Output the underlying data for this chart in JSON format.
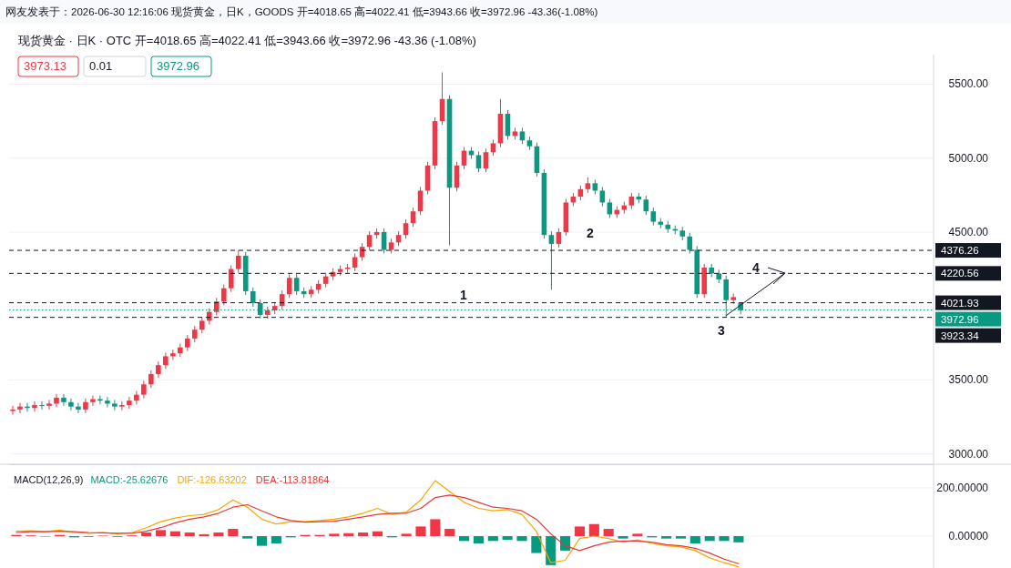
{
  "chart_data": [
    {
      "type": "candlestick",
      "title": "网友发表于：2026-06-30 12:16:06 现货黄金，日K，GOODS 开=4018.65 高=4022.41 低=3943.66 收=3972.96 -43.36(-1.08%)",
      "subtitle": "现货黄金 · 日K · OTC   开=4018.65 高=4022.41 低=3943.66 收=3972.96 -43.36 (-1.08%)",
      "annotations": [
        "3973.13",
        "0.01",
        "3972.96",
        "1",
        "2",
        "3",
        "4"
      ],
      "categories": [
        null,
        null,
        null,
        null,
        null,
        null,
        null,
        null,
        null,
        null,
        null,
        null,
        null,
        null,
        null,
        null,
        null,
        null,
        null,
        null,
        null,
        null,
        null,
        null,
        null,
        null,
        null,
        null,
        null,
        null,
        null,
        null,
        null,
        null,
        null,
        null,
        null,
        null,
        null,
        null,
        null,
        null,
        null,
        null,
        null,
        null,
        null,
        null,
        null,
        null,
        null,
        null,
        null,
        null,
        null,
        null,
        null,
        null,
        null,
        null,
        null,
        null,
        null,
        null,
        null,
        null,
        null,
        null,
        null,
        null,
        null,
        null,
        null,
        null,
        null,
        null,
        null,
        null,
        null,
        null,
        null,
        null,
        null,
        null,
        null,
        null,
        null,
        null,
        null,
        null,
        null,
        null,
        null,
        null,
        null,
        null,
        null,
        null,
        null,
        null,
        null,
        null,
        null,
        null,
        null,
        null,
        null,
        null,
        null,
        null,
        null,
        null,
        null,
        null,
        null,
        null,
        null,
        null,
        null,
        null,
        null,
        null,
        null,
        null,
        null,
        null,
        null
      ],
      "ohlc": [
        [
          3290,
          3325,
          3265,
          3300
        ],
        [
          3300,
          3345,
          3275,
          3320
        ],
        [
          3320,
          3345,
          3285,
          3310
        ],
        [
          3310,
          3355,
          3285,
          3330
        ],
        [
          3330,
          3355,
          3300,
          3325
        ],
        [
          3325,
          3365,
          3300,
          3340
        ],
        [
          3340,
          3405,
          3315,
          3380
        ],
        [
          3380,
          3405,
          3325,
          3350
        ],
        [
          3350,
          3375,
          3295,
          3320
        ],
        [
          3320,
          3345,
          3275,
          3300
        ],
        [
          3300,
          3375,
          3275,
          3350
        ],
        [
          3350,
          3395,
          3325,
          3370
        ],
        [
          3370,
          3395,
          3335,
          3360
        ],
        [
          3360,
          3385,
          3315,
          3340
        ],
        [
          3340,
          3365,
          3295,
          3320
        ],
        [
          3320,
          3355,
          3295,
          3330
        ],
        [
          3330,
          3385,
          3305,
          3360
        ],
        [
          3360,
          3425,
          3335,
          3400
        ],
        [
          3400,
          3495,
          3375,
          3470
        ],
        [
          3470,
          3565,
          3445,
          3540
        ],
        [
          3540,
          3625,
          3515,
          3600
        ],
        [
          3600,
          3685,
          3575,
          3660
        ],
        [
          3660,
          3705,
          3635,
          3680
        ],
        [
          3680,
          3745,
          3655,
          3720
        ],
        [
          3720,
          3805,
          3695,
          3780
        ],
        [
          3780,
          3865,
          3755,
          3840
        ],
        [
          3840,
          3925,
          3815,
          3900
        ],
        [
          3900,
          3985,
          3875,
          3960
        ],
        [
          3960,
          4055,
          3935,
          4030
        ],
        [
          4030,
          4145,
          4005,
          4120
        ],
        [
          4120,
          4275,
          4095,
          4250
        ],
        [
          4250,
          4376.26,
          4225,
          4340
        ],
        [
          4340,
          4365,
          4075,
          4100
        ],
        [
          4100,
          4125,
          3995,
          4020
        ],
        [
          4020,
          4045,
          3915,
          3940
        ],
        [
          3940,
          3995,
          3915,
          3970
        ],
        [
          3970,
          4025,
          3945,
          4000
        ],
        [
          4000,
          4105,
          3975,
          4080
        ],
        [
          4080,
          4215,
          4055,
          4190
        ],
        [
          4190,
          4215,
          4075,
          4100
        ],
        [
          4100,
          4125,
          4055,
          4080
        ],
        [
          4080,
          4135,
          4055,
          4110
        ],
        [
          4110,
          4175,
          4085,
          4150
        ],
        [
          4150,
          4225,
          4125,
          4200
        ],
        [
          4200,
          4255,
          4175,
          4230
        ],
        [
          4230,
          4275,
          4205,
          4250
        ],
        [
          4250,
          4285,
          4225,
          4260
        ],
        [
          4260,
          4355,
          4235,
          4330
        ],
        [
          4330,
          4425,
          4305,
          4400
        ],
        [
          4400,
          4505,
          4375,
          4480
        ],
        [
          4480,
          4525,
          4455,
          4500
        ],
        [
          4500,
          4525,
          4355,
          4380
        ],
        [
          4380,
          4455,
          4355,
          4430
        ],
        [
          4430,
          4505,
          4405,
          4480
        ],
        [
          4480,
          4585,
          4455,
          4560
        ],
        [
          4560,
          4665,
          4535,
          4640
        ],
        [
          4640,
          4805,
          4615,
          4780
        ],
        [
          4780,
          4975,
          4755,
          4950
        ],
        [
          4950,
          5275,
          4925,
          5250
        ],
        [
          5250,
          5580,
          5225,
          5400
        ],
        [
          5400,
          5425,
          4410,
          4800
        ],
        [
          4800,
          4975,
          4775,
          4950
        ],
        [
          4950,
          5075,
          4925,
          5050
        ],
        [
          5050,
          5075,
          4995,
          5020
        ],
        [
          5020,
          5045,
          4905,
          4930
        ],
        [
          4930,
          5065,
          4905,
          5040
        ],
        [
          5040,
          5125,
          5015,
          5100
        ],
        [
          5100,
          5400,
          5075,
          5300
        ],
        [
          5300,
          5325,
          5125,
          5150
        ],
        [
          5150,
          5205,
          5125,
          5180
        ],
        [
          5180,
          5205,
          5095,
          5120
        ],
        [
          5120,
          5145,
          5055,
          5080
        ],
        [
          5080,
          5105,
          4875,
          4900
        ],
        [
          4900,
          4925,
          4455,
          4480
        ],
        [
          4480,
          4505,
          4110,
          4420
        ],
        [
          4420,
          4525,
          4395,
          4500
        ],
        [
          4500,
          4725,
          4475,
          4700
        ],
        [
          4700,
          4765,
          4675,
          4740
        ],
        [
          4740,
          4815,
          4715,
          4790
        ],
        [
          4790,
          4870,
          4765,
          4830
        ],
        [
          4830,
          4855,
          4755,
          4780
        ],
        [
          4780,
          4805,
          4675,
          4700
        ],
        [
          4700,
          4725,
          4595,
          4620
        ],
        [
          4620,
          4675,
          4595,
          4650
        ],
        [
          4650,
          4705,
          4625,
          4680
        ],
        [
          4680,
          4765,
          4655,
          4740
        ],
        [
          4740,
          4765,
          4695,
          4720
        ],
        [
          4720,
          4745,
          4615,
          4640
        ],
        [
          4640,
          4665,
          4545,
          4570
        ],
        [
          4570,
          4595,
          4525,
          4550
        ],
        [
          4550,
          4575,
          4495,
          4520
        ],
        [
          4520,
          4545,
          4485,
          4510
        ],
        [
          4510,
          4535,
          4445,
          4470
        ],
        [
          4470,
          4495,
          4355,
          4380
        ],
        [
          4380,
          4405,
          4055,
          4080
        ],
        [
          4080,
          4285,
          4055,
          4260
        ],
        [
          4260,
          4285,
          4195,
          4220
        ],
        [
          4220,
          4245,
          4155,
          4180
        ],
        [
          4180,
          4205,
          3923.34,
          4040
        ],
        [
          4040,
          4085,
          4015,
          4060
        ],
        [
          4018.65,
          4022.41,
          3943.66,
          3972.96
        ],
        null,
        null,
        null,
        null,
        null,
        null,
        null,
        null,
        null,
        null,
        null,
        null,
        null,
        null,
        null,
        null,
        null,
        null,
        null,
        null,
        null,
        null,
        null,
        null,
        null,
        null
      ],
      "colors": [
        "#f23645",
        "#f23645",
        "#089981",
        "#f23645",
        "#089981",
        "#f23645",
        "#f23645",
        "#089981",
        "#089981",
        "#089981",
        "#f23645",
        "#f23645",
        "#089981",
        "#089981",
        "#089981",
        "#f23645",
        "#f23645",
        "#f23645",
        "#f23645",
        "#f23645",
        "#f23645",
        "#f23645",
        "#f23645",
        "#f23645",
        "#f23645",
        "#f23645",
        "#f23645",
        "#f23645",
        "#f23645",
        "#f23645",
        "#f23645",
        "#f23645",
        "#089981",
        "#089981",
        "#089981",
        "#f23645",
        "#f23645",
        "#f23645",
        "#f23645",
        "#089981",
        "#089981",
        "#f23645",
        "#f23645",
        "#f23645",
        "#f23645",
        "#f23645",
        "#f23645",
        "#f23645",
        "#f23645",
        "#f23645",
        "#f23645",
        "#089981",
        "#f23645",
        "#f23645",
        "#f23645",
        "#f23645",
        "#f23645",
        "#f23645",
        "#f23645",
        "#f23645",
        "#089981",
        "#f23645",
        "#f23645",
        "#089981",
        "#089981",
        "#f23645",
        "#f23645",
        "#f23645",
        "#089981",
        "#f23645",
        "#089981",
        "#089981",
        "#089981",
        "#089981",
        "#089981",
        "#f23645",
        "#f23645",
        "#f23645",
        "#f23645",
        "#f23645",
        "#089981",
        "#089981",
        "#089981",
        "#f23645",
        "#f23645",
        "#f23645",
        "#089981",
        "#089981",
        "#089981",
        "#089981",
        "#089981",
        "#089981",
        "#089981",
        "#089981",
        "#089981",
        "#f23645",
        "#089981",
        "#089981",
        "#089981",
        "#f23645",
        "#089981",
        null,
        null,
        null,
        null,
        null,
        null,
        null,
        null,
        null,
        null,
        null,
        null,
        null,
        null,
        null,
        null,
        null,
        null,
        null,
        null,
        null,
        null,
        null,
        null,
        null,
        null
      ],
      "ylim": [
        2930,
        5700
      ],
      "yticks": [
        {
          "value": 3000,
          "label": "3000.00"
        },
        {
          "value": 3500,
          "label": "3500.00"
        },
        {
          "value": 4000,
          "label": null
        },
        {
          "value": 4500,
          "label": "4500.00"
        },
        {
          "value": 5000,
          "label": "5000.00"
        },
        {
          "value": 5500,
          "label": "5500.00"
        }
      ],
      "ref_lines": [
        {
          "axis": "y",
          "value": 4376.26,
          "label": "4376.26",
          "color": "#131722",
          "line_style": "dashed"
        },
        {
          "axis": "y",
          "value": 4220.56,
          "label": "4220.56",
          "color": "#131722",
          "line_style": "dashed"
        },
        {
          "axis": "y",
          "value": 4021.93,
          "label": "4021.93",
          "color": "#131722",
          "line_style": "dashed"
        },
        {
          "axis": "y",
          "value": 3972.96,
          "label": "3972.96",
          "color": "#089981",
          "line_style": "dotted"
        },
        {
          "axis": "y",
          "value": 3923.34,
          "label": "3923.34",
          "color": "#131722",
          "line_style": "dashed"
        }
      ],
      "grid": "y",
      "tick_labels": "y"
    },
    {
      "type": "bar",
      "title": "MACD(12,26,9)",
      "categories": [
        null,
        null,
        null,
        null,
        null,
        null,
        null,
        null,
        null,
        null,
        null,
        null,
        null,
        null,
        null,
        null,
        null,
        null,
        null,
        null,
        null,
        null,
        null,
        null,
        null,
        null,
        null,
        null,
        null,
        null,
        null,
        null,
        null,
        null,
        null,
        null,
        null,
        null,
        null,
        null,
        null,
        null,
        null,
        null,
        null,
        null,
        null,
        null,
        null,
        null,
        null,
        null,
        null,
        null,
        null,
        null,
        null,
        null,
        null,
        null,
        null,
        null,
        null,
        null
      ],
      "series": [
        {
          "name": "MACD:-25.62676",
          "type": "bar",
          "color": "#089981",
          "values": [
            5,
            3,
            0,
            5,
            -5,
            -3,
            2,
            -3,
            3,
            15,
            25,
            20,
            15,
            8,
            15,
            30,
            -10,
            -40,
            -30,
            -5,
            5,
            5,
            10,
            12,
            15,
            20,
            -5,
            10,
            40,
            70,
            30,
            -20,
            -30,
            -20,
            -15,
            -20,
            -70,
            -120,
            -60,
            40,
            50,
            30,
            -10,
            10,
            -5,
            -10,
            -10,
            -30,
            -20,
            -20,
            -25.62676,
            null,
            null,
            null,
            null,
            null,
            null,
            null,
            null,
            null,
            null,
            null,
            null,
            null
          ],
          "colors": [
            "#f23645",
            "#f23645",
            "#f23645",
            "#f23645",
            "#089981",
            "#089981",
            "#f23645",
            "#089981",
            "#f23645",
            "#f23645",
            "#f23645",
            "#f23645",
            "#f23645",
            "#f23645",
            "#f23645",
            "#f23645",
            "#089981",
            "#089981",
            "#089981",
            "#089981",
            "#f23645",
            "#f23645",
            "#f23645",
            "#f23645",
            "#f23645",
            "#f23645",
            "#089981",
            "#f23645",
            "#f23645",
            "#f23645",
            "#f23645",
            "#089981",
            "#089981",
            "#089981",
            "#089981",
            "#089981",
            "#089981",
            "#089981",
            "#089981",
            "#f23645",
            "#f23645",
            "#f23645",
            "#089981",
            "#f23645",
            "#089981",
            "#089981",
            "#089981",
            "#089981",
            "#089981",
            "#089981",
            "#089981",
            null,
            null,
            null,
            null,
            null,
            null,
            null,
            null,
            null,
            null,
            null,
            null,
            null
          ]
        },
        {
          "name": "DIF:-126.63202",
          "type": "line",
          "color": "#f7a600",
          "values": [
            20,
            22,
            18,
            25,
            15,
            12,
            15,
            10,
            15,
            35,
            60,
            75,
            85,
            90,
            110,
            150,
            120,
            70,
            50,
            60,
            60,
            65,
            70,
            80,
            95,
            115,
            90,
            100,
            150,
            230,
            185,
            140,
            115,
            105,
            110,
            90,
            20,
            -110,
            -100,
            -10,
            0,
            -10,
            -25,
            -15,
            -30,
            -40,
            -45,
            -60,
            -90,
            -110,
            -126.63202,
            null,
            null,
            null,
            null,
            null,
            null,
            null,
            null,
            null,
            null,
            null,
            null,
            null
          ]
        },
        {
          "name": "DEA:-113.81864",
          "type": "line",
          "color": "#e53935",
          "values": [
            15,
            18,
            18,
            20,
            18,
            15,
            14,
            12,
            12,
            20,
            35,
            55,
            70,
            80,
            95,
            120,
            130,
            105,
            80,
            65,
            58,
            60,
            62,
            70,
            80,
            90,
            95,
            95,
            115,
            160,
            170,
            160,
            140,
            120,
            115,
            105,
            70,
            10,
            -40,
            -60,
            -40,
            -25,
            -20,
            -20,
            -25,
            -35,
            -40,
            -50,
            -70,
            -95,
            -113.81864,
            null,
            null,
            null,
            null,
            null,
            null,
            null,
            null,
            null,
            null,
            null,
            null,
            null
          ]
        }
      ],
      "ylim": [
        -132,
        298
      ],
      "yticks": [
        {
          "value": 0,
          "label": "0.00000"
        },
        {
          "value": 200,
          "label": "200.00000"
        }
      ],
      "grid": "y",
      "legend": "top left",
      "tick_labels": "y"
    }
  ]
}
